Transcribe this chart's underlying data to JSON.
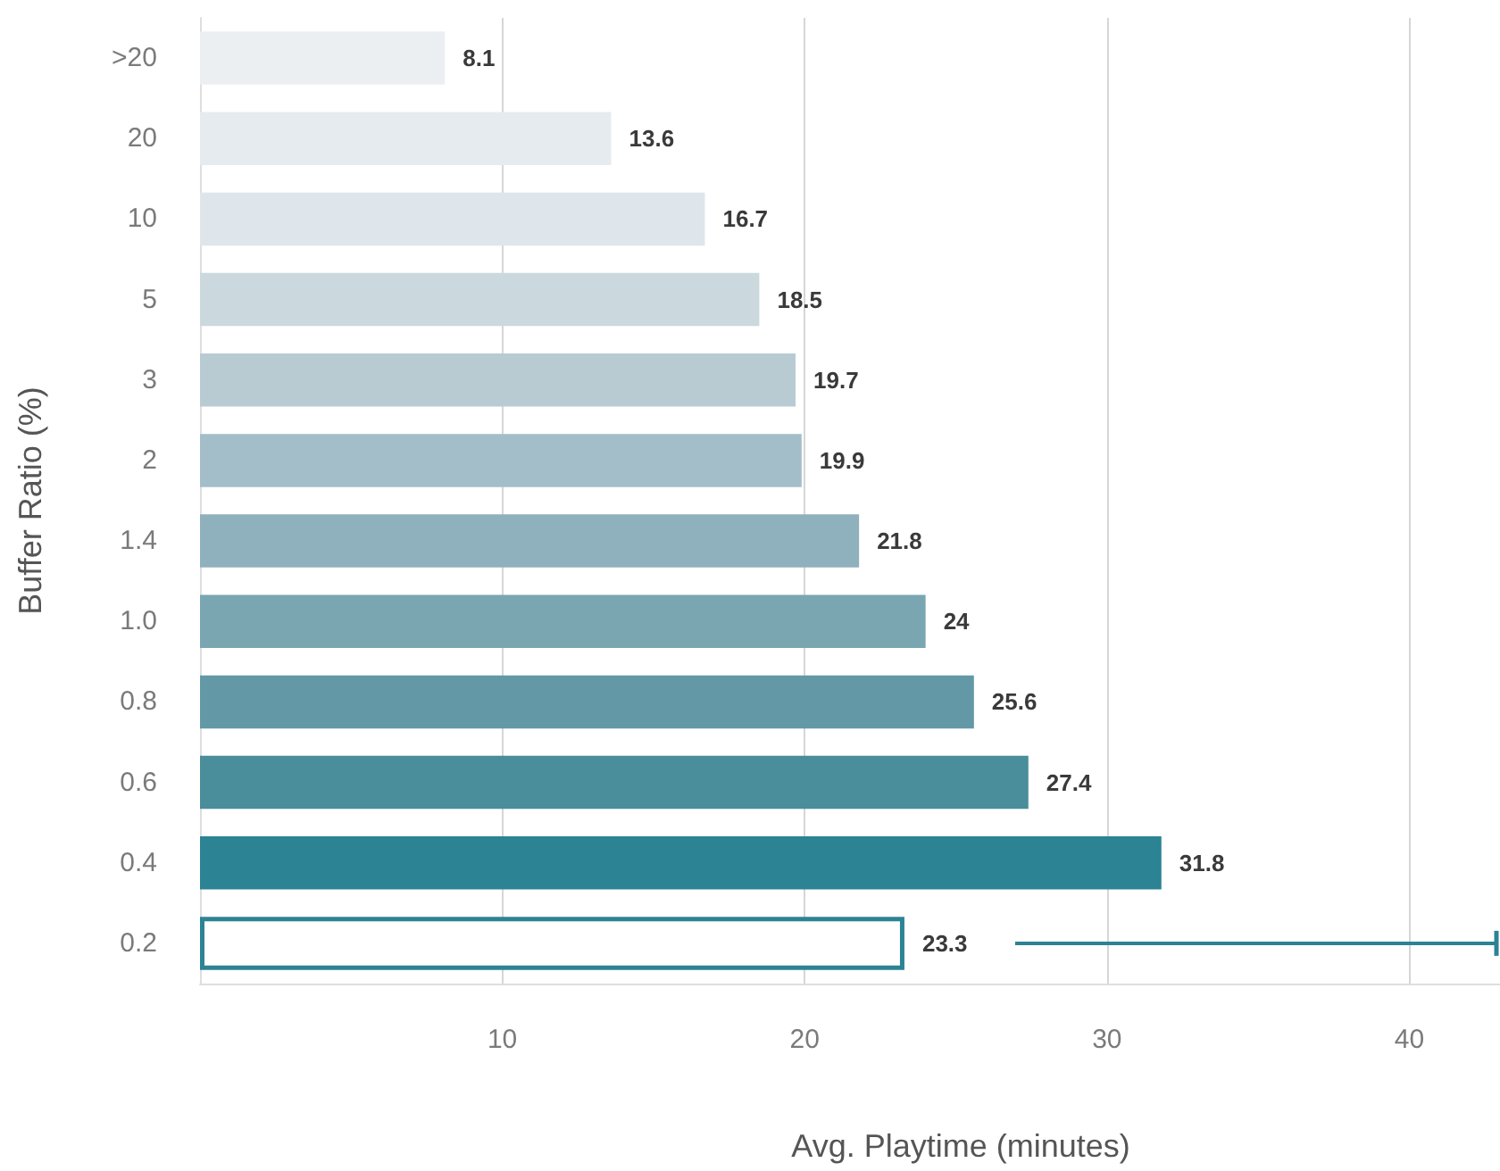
{
  "chart_data": {
    "type": "bar",
    "orientation": "horizontal",
    "xlabel": "Avg. Playtime (minutes)",
    "ylabel": "Buffer Ratio (%)",
    "categories": [
      ">20",
      "20",
      "10",
      "5",
      "3",
      "2",
      "1.4",
      "1.0",
      "0.8",
      "0.6",
      "0.4",
      "0.2"
    ],
    "values": [
      8.1,
      13.6,
      16.7,
      18.5,
      19.7,
      19.9,
      21.8,
      24,
      25.6,
      27.4,
      31.8,
      23.3
    ],
    "colors": [
      "#eceff2",
      "#e6ebef",
      "#dfe6eb",
      "#cbd8de",
      "#b8cbd3",
      "#a3bec9",
      "#8fb0bd",
      "#7aa6b2",
      "#6399a6",
      "#4a8d9b",
      "#2c8394",
      "#ffffff"
    ],
    "xlim": [
      0,
      43
    ],
    "xticks": [
      10,
      20,
      30,
      40
    ],
    "grid": "x",
    "data_labels": true
  }
}
